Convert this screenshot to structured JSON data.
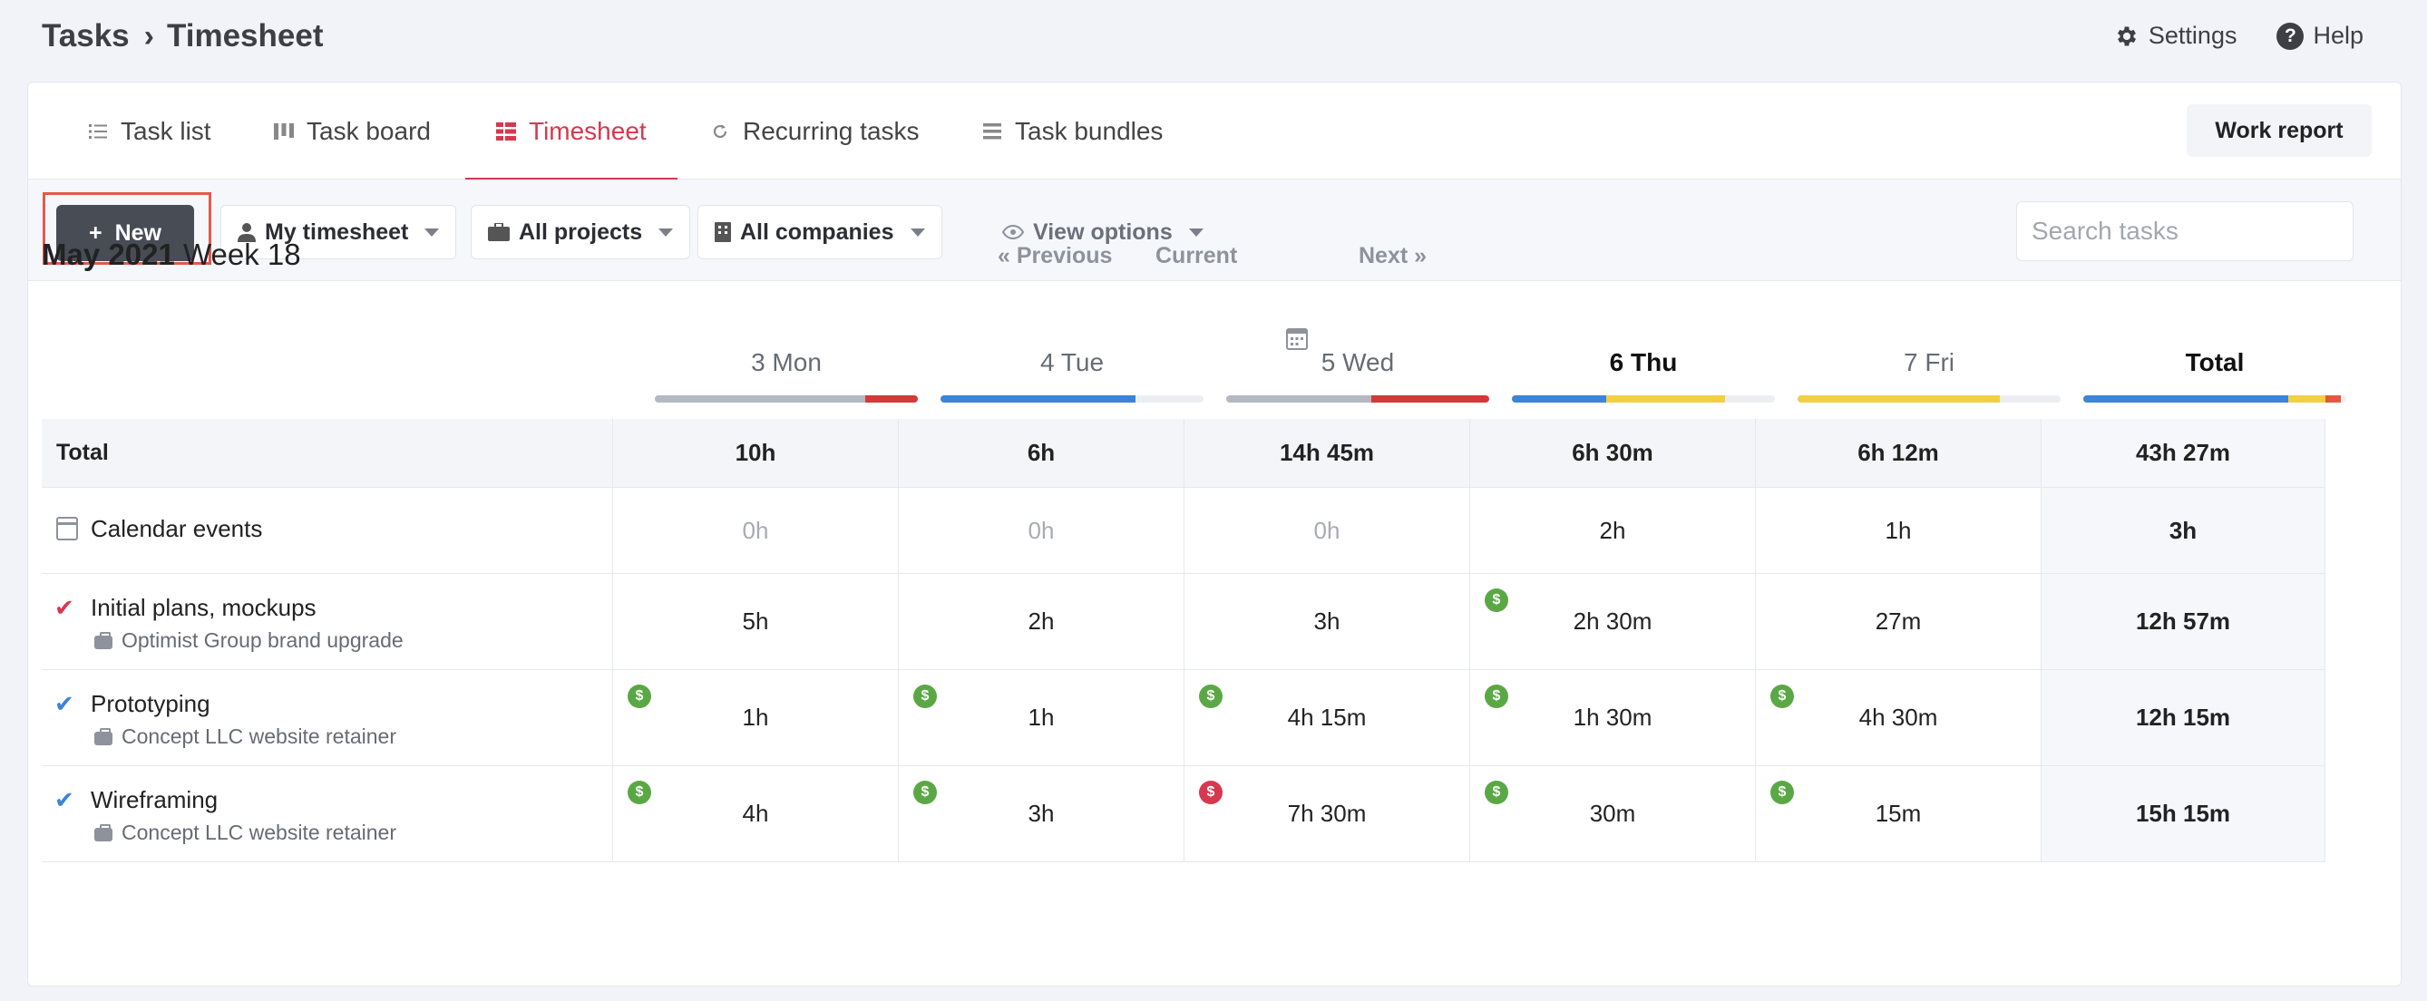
{
  "breadcrumb": {
    "root": "Tasks",
    "separator": "›",
    "current": "Timesheet"
  },
  "header_actions": {
    "settings": "Settings",
    "help": "Help"
  },
  "tabs": [
    {
      "label": "Task list",
      "icon": "list-icon"
    },
    {
      "label": "Task board",
      "icon": "board-icon"
    },
    {
      "label": "Timesheet",
      "icon": "timesheet-icon",
      "active": true
    },
    {
      "label": "Recurring tasks",
      "icon": "refresh-icon"
    },
    {
      "label": "Task bundles",
      "icon": "bundle-icon"
    }
  ],
  "work_report": "Work report",
  "toolbar": {
    "new_label": "New",
    "filters": [
      {
        "label": "My timesheet",
        "icon": "user-icon"
      },
      {
        "label": "All projects",
        "icon": "briefcase-icon"
      },
      {
        "label": "All companies",
        "icon": "building-icon"
      },
      {
        "label": "View options",
        "icon": "eye-icon"
      }
    ],
    "search_placeholder": "Search tasks"
  },
  "period": {
    "month": "May 2021",
    "week": "Week 18"
  },
  "nav": {
    "previous": "« Previous",
    "current": "Current",
    "next": "Next »"
  },
  "columns": [
    {
      "label": "3 Mon",
      "bar": [
        {
          "color": "#b3b8c2",
          "frac": 0.8
        },
        {
          "color": "#d23a36",
          "frac": 0.2
        }
      ]
    },
    {
      "label": "4 Tue",
      "bar": [
        {
          "color": "#3d84d6",
          "frac": 0.74
        }
      ]
    },
    {
      "label": "5 Wed",
      "bar": [
        {
          "color": "#b3b8c2",
          "frac": 0.55
        },
        {
          "color": "#d23a36",
          "frac": 0.45
        }
      ]
    },
    {
      "label": "6 Thu",
      "bold": true,
      "bar": [
        {
          "color": "#3d84d6",
          "frac": 0.36
        },
        {
          "color": "#f2cf45",
          "frac": 0.45
        }
      ]
    },
    {
      "label": "7 Fri",
      "bar": [
        {
          "color": "#f2cf45",
          "frac": 0.77
        }
      ]
    },
    {
      "label": "Total",
      "bold": true,
      "bar": [
        {
          "color": "#3d84d6",
          "frac": 0.78
        },
        {
          "color": "#f2cf45",
          "frac": 0.14
        },
        {
          "color": "#e05a3f",
          "frac": 0.06
        }
      ]
    }
  ],
  "colors": {
    "accent": "#d6384f",
    "billable": "#5aa845",
    "nonbillable": "#d6384f",
    "check_red": "#d6384f",
    "check_blue": "#3d84d6"
  },
  "rows": {
    "total": {
      "label": "Total",
      "values": [
        "10h",
        "6h",
        "14h 45m",
        "6h 30m",
        "6h 12m"
      ],
      "total": "43h 27m"
    },
    "calendar": {
      "label": "Calendar events",
      "values": [
        "0h",
        "0h",
        "0h",
        "2h",
        "1h"
      ],
      "total": "3h"
    },
    "tasks": [
      {
        "title": "Initial plans, mockups",
        "project": "Optimist Group brand upgrade",
        "check": "red",
        "values": [
          "5h",
          "2h",
          "3h",
          "2h 30m",
          "27m"
        ],
        "coins": [
          "",
          "",
          "",
          "green",
          ""
        ],
        "total": "12h 57m"
      },
      {
        "title": "Prototyping",
        "project": "Concept LLC website retainer",
        "check": "blue",
        "values": [
          "1h",
          "1h",
          "4h 15m",
          "1h 30m",
          "4h 30m"
        ],
        "coins": [
          "green",
          "green",
          "green",
          "green",
          "green"
        ],
        "total": "12h 15m"
      },
      {
        "title": "Wireframing",
        "project": "Concept LLC website retainer",
        "check": "blue",
        "values": [
          "4h",
          "3h",
          "7h 30m",
          "30m",
          "15m"
        ],
        "coins": [
          "green",
          "green",
          "red",
          "green",
          "green"
        ],
        "total": "15h 15m"
      }
    ]
  }
}
